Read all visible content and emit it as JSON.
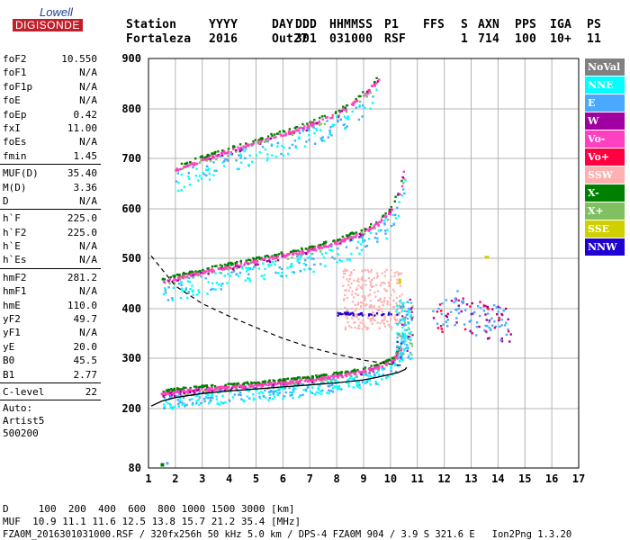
{
  "logo": {
    "line1": "Lowell",
    "line2": "DIGISONDE"
  },
  "header": {
    "labels": [
      "Station",
      "YYYY",
      "DAY",
      "DDD",
      "HHMMSS",
      "P1",
      "FFS",
      "S",
      "AXN",
      "PPS",
      "IGA",
      "PS"
    ],
    "values": [
      "Fortaleza",
      "2016",
      "Out27",
      "301",
      "031000",
      "RSF",
      "",
      "1",
      "714",
      "100",
      "10+",
      "11"
    ]
  },
  "params": {
    "group1": [
      {
        "name": "foF2",
        "value": "10.550"
      },
      {
        "name": "foF1",
        "value": "N/A"
      },
      {
        "name": "foF1p",
        "value": "N/A"
      },
      {
        "name": "foE",
        "value": "N/A"
      },
      {
        "name": "foEp",
        "value": "0.42"
      },
      {
        "name": "fxI",
        "value": "11.00"
      },
      {
        "name": "foEs",
        "value": "N/A"
      },
      {
        "name": "fmin",
        "value": "1.45"
      }
    ],
    "group2": [
      {
        "name": "MUF(D)",
        "value": "35.40"
      },
      {
        "name": "M(D)",
        "value": "3.36"
      },
      {
        "name": "D",
        "value": "N/A"
      }
    ],
    "group3": [
      {
        "name": "h`F",
        "value": "225.0"
      },
      {
        "name": "h`F2",
        "value": "225.0"
      },
      {
        "name": "h`E",
        "value": "N/A"
      },
      {
        "name": "h`Es",
        "value": "N/A"
      }
    ],
    "group4": [
      {
        "name": "hmF2",
        "value": "281.2"
      },
      {
        "name": "hmF1",
        "value": "N/A"
      },
      {
        "name": "hmE",
        "value": "110.0"
      },
      {
        "name": "yF2",
        "value": "49.7"
      },
      {
        "name": "yF1",
        "value": "N/A"
      },
      {
        "name": "yE",
        "value": "20.0"
      },
      {
        "name": "B0",
        "value": "45.5"
      },
      {
        "name": "B1",
        "value": "2.77"
      }
    ],
    "group5": [
      {
        "name": "C-level",
        "value": "22"
      }
    ],
    "info": [
      "Auto:",
      "Artist5",
      "500200"
    ]
  },
  "legend": [
    {
      "label": "NoVal",
      "bg": "#808080",
      "fg": "#ffffff"
    },
    {
      "label": "NNE",
      "bg": "#00ffff",
      "fg": "#ffffff"
    },
    {
      "label": "E",
      "bg": "#4aa8ff",
      "fg": "#ffffff"
    },
    {
      "label": "W",
      "bg": "#a000a0",
      "fg": "#ffffff"
    },
    {
      "label": "Vo-",
      "bg": "#ff40c0",
      "fg": "#ffffff"
    },
    {
      "label": "Vo+",
      "bg": "#ff0040",
      "fg": "#ffffff"
    },
    {
      "label": "SSW",
      "bg": "#ffb0b0",
      "fg": "#ffffff"
    },
    {
      "label": "X-",
      "bg": "#008000",
      "fg": "#ffffff"
    },
    {
      "label": "X+",
      "bg": "#80c060",
      "fg": "#ffffff"
    },
    {
      "label": "SSE",
      "bg": "#d0d000",
      "fg": "#ffffff"
    },
    {
      "label": "NNW",
      "bg": "#2000d0",
      "fg": "#ffffff"
    }
  ],
  "footer": {
    "line1": "D     100  200  400  600  800 1000 1500 3000 [km]",
    "line2": "MUF  10.9 11.1 11.6 12.5 13.8 15.7 21.2 35.4 [MHz]",
    "line3": "FZA0M_2016301031000.RSF / 320fx256h 50 kHz 5.0 km / DPS-4 FZA0M 904 / 3.9 S 321.6 E   Ion2Png 1.3.20"
  },
  "chart_data": {
    "type": "scatter",
    "x_ticks": [
      "1",
      "2",
      "3",
      "4",
      "5",
      "6",
      "7",
      "8",
      "9",
      "10",
      "11",
      "12",
      "13",
      "14",
      "15",
      "16",
      "17"
    ],
    "y_ticks": [
      "80",
      "200",
      "300",
      "400",
      "500",
      "600",
      "700",
      "800",
      "900"
    ],
    "xlim": [
      1,
      17
    ],
    "ylim": [
      80,
      900
    ],
    "grid": true,
    "colors": {
      "NNE": "#00ffff",
      "E": "#4aa8ff",
      "W": "#a000a0",
      "Vo-": "#ff40c0",
      "Vo+": "#ff0040",
      "SSW": "#ffb0b0",
      "X-": "#008000",
      "X+": "#80c060",
      "SSE": "#d0d000",
      "NNW": "#2000d0"
    },
    "traces": [
      {
        "name": "o-trace F2 (1st hop)",
        "x": [
          1.5,
          2,
          3,
          4,
          5,
          6,
          7,
          8,
          9,
          9.5,
          10,
          10.2,
          10.35,
          10.45,
          10.5
        ],
        "y": [
          232,
          236,
          241,
          245,
          249,
          254,
          260,
          267,
          277,
          284,
          296,
          305,
          320,
          345,
          380
        ]
      },
      {
        "name": "o-trace F2 (2nd hop)",
        "x": [
          1.5,
          2,
          3,
          4,
          5,
          6,
          7,
          8,
          9,
          9.5,
          10,
          10.3,
          10.5
        ],
        "y": [
          455,
          463,
          475,
          486,
          497,
          508,
          520,
          535,
          557,
          572,
          598,
          635,
          680
        ]
      },
      {
        "name": "o-trace F2 (3rd hop)",
        "x": [
          2,
          3,
          4,
          5,
          6,
          7,
          8,
          9,
          9.5
        ],
        "y": [
          680,
          700,
          718,
          735,
          752,
          770,
          792,
          830,
          860
        ]
      },
      {
        "name": "x-trace / oblique returns",
        "x": [
          11.5,
          12,
          12.5,
          13,
          13.5,
          14,
          14.5
        ],
        "y": [
          375,
          395,
          405,
          385,
          380,
          370,
          360
        ]
      }
    ],
    "profile": {
      "name": "electron density profile",
      "x": [
        1.1,
        1.5,
        2,
        3,
        4,
        5,
        6,
        7,
        8,
        9,
        9.5,
        10,
        10.3,
        10.55,
        10.6
      ],
      "y": [
        205,
        215,
        222,
        230,
        235,
        239,
        243,
        247,
        251,
        257,
        262,
        268,
        272,
        278,
        282
      ]
    },
    "muf_curve": {
      "name": "MUF transmission curve",
      "x": [
        1.1,
        2,
        3,
        4,
        5,
        6,
        7,
        8,
        9,
        10,
        10.5
      ],
      "y": [
        505,
        445,
        410,
        385,
        362,
        340,
        322,
        308,
        296,
        288,
        285
      ]
    }
  }
}
